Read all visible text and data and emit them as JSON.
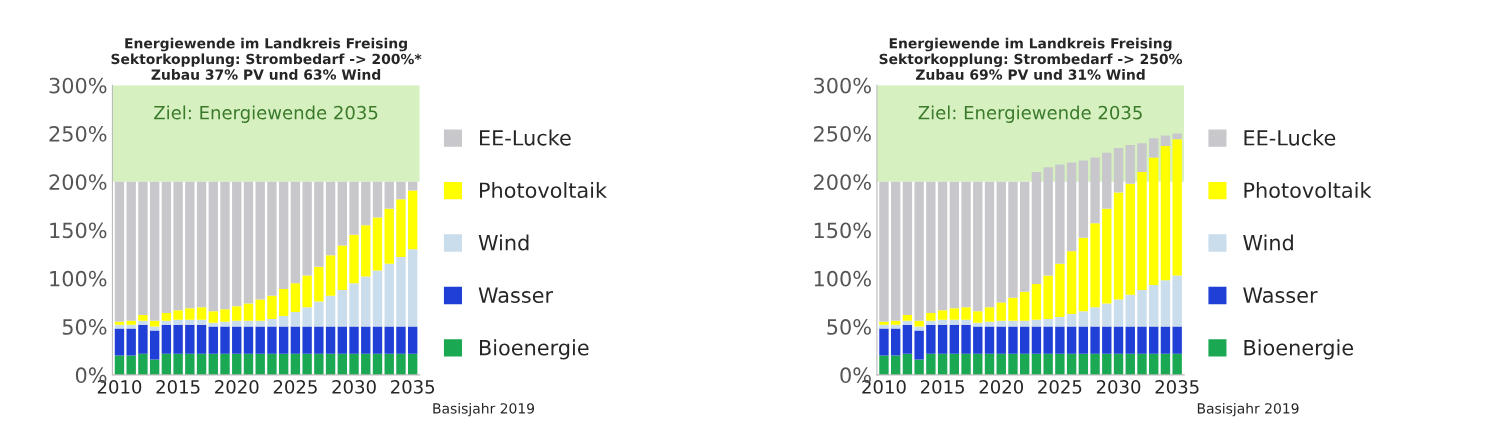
{
  "chart_data": [
    {
      "type": "bar",
      "title": "Energiewende im Landkreis Freising\nSektorkopplung: Strombedarf -> 200%*\nZubau 37% PV und 63% Wind",
      "categories": [
        "2010",
        null,
        null,
        null,
        null,
        "2015",
        null,
        null,
        null,
        null,
        "2020",
        null,
        null,
        null,
        null,
        "2025",
        null,
        null,
        null,
        null,
        "2030",
        null,
        null,
        null,
        null,
        "2035"
      ],
      "stacked": true,
      "legend": "right",
      "ylim": [
        0,
        300
      ],
      "yticks": [
        {
          "value": 0,
          "label": "0%"
        },
        {
          "value": 50,
          "label": "50%"
        },
        {
          "value": 100,
          "label": "100%"
        },
        {
          "value": 150,
          "label": "150%"
        },
        {
          "value": 200,
          "label": "200%"
        },
        {
          "value": 250,
          "label": "250%"
        },
        {
          "value": 300,
          "label": "300%"
        }
      ],
      "bands": [
        {
          "axis": "y",
          "from": 200,
          "to": 300,
          "label": "Ziel: Energiewende 2035",
          "color": "#d6f0c0"
        }
      ],
      "annotations": [
        "Basisjahr 2019"
      ],
      "series": [
        {
          "name": "Bioenergie",
          "color": "#1aa852",
          "values": [
            20,
            20,
            22,
            16,
            22,
            22,
            22,
            22,
            22,
            22,
            22,
            22,
            22,
            22,
            22,
            22,
            22,
            22,
            22,
            22,
            22,
            22,
            22,
            22,
            22,
            22
          ]
        },
        {
          "name": "Wasser",
          "color": "#1f3fd6",
          "values": [
            28,
            28,
            30,
            30,
            30,
            30,
            30,
            30,
            28,
            28,
            28,
            28,
            28,
            28,
            28,
            28,
            28,
            28,
            28,
            28,
            28,
            28,
            28,
            28,
            28,
            28
          ]
        },
        {
          "name": "Wind",
          "color": "#c9ddec",
          "values": [
            4,
            4,
            4,
            4,
            4,
            5,
            5,
            5,
            4,
            5,
            6,
            6,
            6,
            8,
            11,
            15,
            20,
            26,
            32,
            38,
            45,
            52,
            58,
            65,
            72,
            80
          ]
        },
        {
          "name": "Photovoltaik",
          "color": "#ffff00",
          "values": [
            3,
            4,
            6,
            6,
            8,
            10,
            12,
            13,
            12,
            13,
            15,
            18,
            22,
            24,
            28,
            30,
            33,
            36,
            42,
            46,
            50,
            53,
            55,
            57,
            60,
            61
          ]
        },
        {
          "name": "EE-Lucke",
          "color": "#c8c8cc",
          "values": [
            145,
            144,
            138,
            144,
            136,
            133,
            131,
            130,
            134,
            132,
            129,
            126,
            122,
            118,
            111,
            105,
            97,
            88,
            76,
            66,
            55,
            45,
            37,
            28,
            18,
            9
          ]
        }
      ]
    },
    {
      "type": "bar",
      "title": "Energiewende im Landkreis Freising\nSektorkopplung: Strombedarf -> 250%\nZubau 69% PV und 31% Wind",
      "categories": [
        "2010",
        null,
        null,
        null,
        null,
        "2015",
        null,
        null,
        null,
        null,
        "2020",
        null,
        null,
        null,
        null,
        "2025",
        null,
        null,
        null,
        null,
        "2030",
        null,
        null,
        null,
        null,
        "2035"
      ],
      "stacked": true,
      "legend": "right",
      "ylim": [
        0,
        300
      ],
      "yticks": [
        {
          "value": 0,
          "label": "0%"
        },
        {
          "value": 50,
          "label": "50%"
        },
        {
          "value": 100,
          "label": "100%"
        },
        {
          "value": 150,
          "label": "150%"
        },
        {
          "value": 200,
          "label": "200%"
        },
        {
          "value": 250,
          "label": "250%"
        },
        {
          "value": 300,
          "label": "300%"
        }
      ],
      "bands": [
        {
          "axis": "y",
          "from": 200,
          "to": 300,
          "label": "Ziel: Energiewende 2035",
          "color": "#d6f0c0"
        }
      ],
      "annotations": [
        "Basisjahr 2019"
      ],
      "series": [
        {
          "name": "Bioenergie",
          "color": "#1aa852",
          "values": [
            20,
            20,
            22,
            16,
            22,
            22,
            22,
            22,
            22,
            22,
            22,
            22,
            22,
            22,
            22,
            22,
            22,
            22,
            22,
            22,
            22,
            22,
            22,
            22,
            22,
            22
          ]
        },
        {
          "name": "Wasser",
          "color": "#1f3fd6",
          "values": [
            28,
            28,
            30,
            30,
            30,
            30,
            30,
            30,
            28,
            28,
            28,
            28,
            28,
            28,
            28,
            28,
            28,
            28,
            28,
            28,
            28,
            28,
            28,
            28,
            28,
            28
          ]
        },
        {
          "name": "Wind",
          "color": "#c9ddec",
          "values": [
            4,
            4,
            4,
            4,
            4,
            5,
            5,
            5,
            4,
            5,
            6,
            6,
            6,
            7,
            8,
            10,
            13,
            16,
            20,
            24,
            28,
            33,
            38,
            43,
            48,
            53
          ]
        },
        {
          "name": "Photovoltaik",
          "color": "#ffff00",
          "values": [
            3,
            4,
            6,
            6,
            8,
            10,
            12,
            13,
            12,
            15,
            19,
            24,
            30,
            37,
            45,
            55,
            65,
            76,
            87,
            98,
            111,
            115,
            122,
            132,
            139,
            141
          ]
        },
        {
          "name": "EE-Lucke",
          "color": "#c8c8cc",
          "values": [
            145,
            144,
            138,
            144,
            136,
            133,
            131,
            130,
            134,
            130,
            125,
            120,
            114,
            116,
            112,
            103,
            92,
            80,
            68,
            58,
            46,
            40,
            30,
            20,
            11,
            6
          ]
        }
      ]
    }
  ]
}
